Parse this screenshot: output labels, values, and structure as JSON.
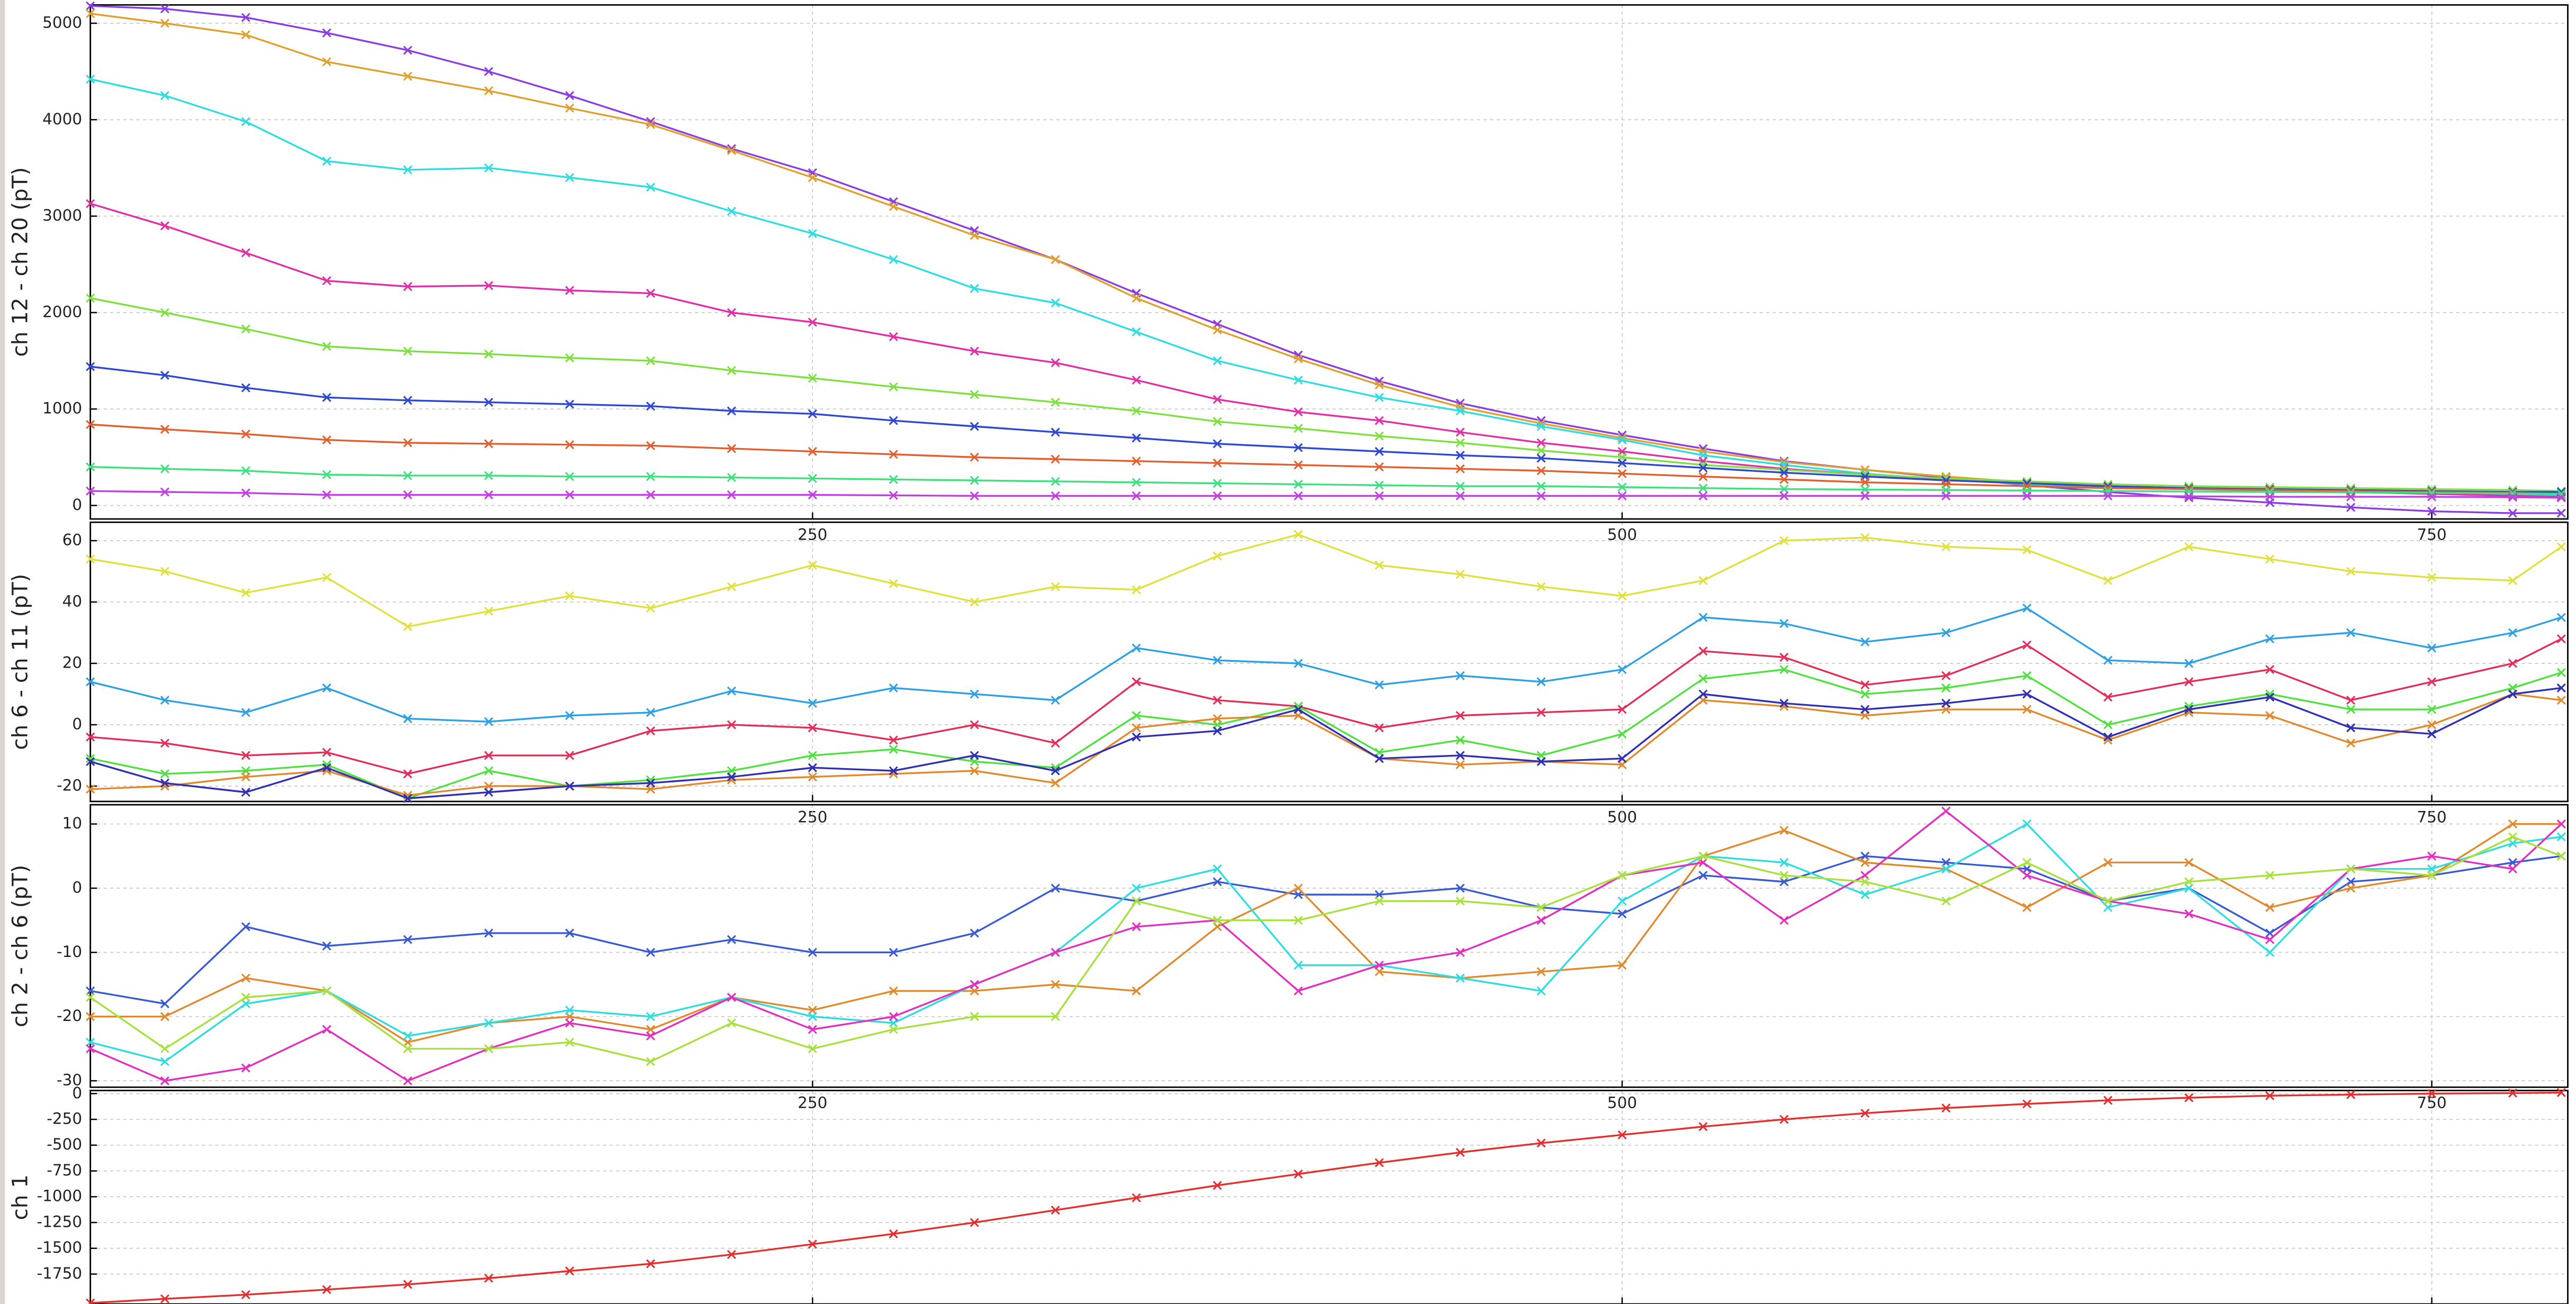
{
  "chart_data": [
    {
      "type": "line",
      "y_label": "ch 12 - ch 20 (pT)",
      "x": [
        27,
        50,
        75,
        100,
        125,
        150,
        175,
        200,
        225,
        250,
        275,
        300,
        325,
        350,
        375,
        400,
        425,
        450,
        475,
        500,
        525,
        550,
        575,
        600,
        625,
        650,
        675,
        700,
        725,
        750,
        775,
        790
      ],
      "xlim": [
        27,
        792
      ],
      "xticks": [
        250,
        500,
        750
      ],
      "ylim": [
        -140,
        5190
      ],
      "yticks": [
        0,
        1000,
        2000,
        3000,
        4000,
        5000
      ],
      "grid": true,
      "series": [
        {
          "color": "#8a3ee0",
          "values": [
            5180,
            5150,
            5060,
            4900,
            4720,
            4500,
            4250,
            3980,
            3700,
            3450,
            3150,
            2850,
            2550,
            2200,
            1880,
            1560,
            1290,
            1060,
            880,
            730,
            590,
            460,
            370,
            290,
            210,
            140,
            80,
            30,
            -20,
            -60,
            -80,
            -80
          ]
        },
        {
          "color": "#e0a030",
          "values": [
            5100,
            5000,
            4880,
            4600,
            4450,
            4300,
            4120,
            3950,
            3680,
            3400,
            3100,
            2800,
            2550,
            2150,
            1820,
            1520,
            1250,
            1020,
            850,
            700,
            560,
            450,
            370,
            300,
            240,
            200,
            170,
            160,
            150,
            140,
            130,
            120
          ]
        },
        {
          "color": "#30dce0",
          "values": [
            4420,
            4250,
            3980,
            3570,
            3480,
            3500,
            3400,
            3300,
            3050,
            2820,
            2550,
            2250,
            2100,
            1800,
            1500,
            1300,
            1120,
            980,
            820,
            680,
            520,
            420,
            330,
            270,
            220,
            190,
            170,
            150,
            140,
            120,
            110,
            100
          ]
        },
        {
          "color": "#e030a8",
          "values": [
            3130,
            2900,
            2620,
            2330,
            2270,
            2280,
            2230,
            2200,
            2000,
            1900,
            1750,
            1600,
            1480,
            1300,
            1100,
            970,
            880,
            760,
            650,
            560,
            460,
            380,
            320,
            270,
            230,
            200,
            180,
            160,
            140,
            120,
            100,
            90
          ]
        },
        {
          "color": "#7ee040",
          "values": [
            2150,
            2000,
            1830,
            1650,
            1600,
            1570,
            1530,
            1500,
            1400,
            1320,
            1230,
            1150,
            1070,
            980,
            870,
            800,
            720,
            650,
            570,
            500,
            420,
            370,
            320,
            280,
            250,
            220,
            200,
            190,
            180,
            170,
            160,
            150
          ]
        },
        {
          "color": "#3048d0",
          "values": [
            1440,
            1350,
            1220,
            1120,
            1090,
            1070,
            1050,
            1030,
            980,
            950,
            880,
            820,
            760,
            700,
            640,
            600,
            560,
            520,
            490,
            440,
            390,
            340,
            300,
            260,
            230,
            200,
            180,
            170,
            160,
            150,
            140,
            140
          ]
        },
        {
          "color": "#e06030",
          "values": [
            840,
            790,
            740,
            680,
            650,
            640,
            630,
            620,
            590,
            560,
            530,
            500,
            480,
            460,
            440,
            420,
            400,
            380,
            360,
            330,
            300,
            270,
            240,
            220,
            200,
            180,
            170,
            160,
            150,
            140,
            130,
            120
          ]
        },
        {
          "color": "#40e080",
          "values": [
            400,
            380,
            360,
            320,
            310,
            310,
            300,
            300,
            290,
            280,
            270,
            260,
            250,
            240,
            230,
            220,
            210,
            200,
            200,
            190,
            180,
            170,
            165,
            160,
            155,
            150,
            145,
            140,
            135,
            130,
            125,
            120
          ]
        },
        {
          "color": "#c040e0",
          "values": [
            150,
            140,
            130,
            110,
            110,
            110,
            110,
            110,
            110,
            110,
            105,
            100,
            100,
            100,
            100,
            100,
            100,
            100,
            100,
            100,
            100,
            100,
            100,
            100,
            100,
            100,
            95,
            90,
            90,
            90,
            85,
            80
          ]
        }
      ]
    },
    {
      "type": "line",
      "y_label": "ch 6 - ch 11 (pT)",
      "x": [
        27,
        50,
        75,
        100,
        125,
        150,
        175,
        200,
        225,
        250,
        275,
        300,
        325,
        350,
        375,
        400,
        425,
        450,
        475,
        500,
        525,
        550,
        575,
        600,
        625,
        650,
        675,
        700,
        725,
        750,
        775,
        790
      ],
      "xlim": [
        27,
        792
      ],
      "xticks": [
        250,
        500,
        750
      ],
      "ylim": [
        -25,
        66
      ],
      "yticks": [
        -20,
        0,
        20,
        40,
        60
      ],
      "grid": true,
      "series": [
        {
          "color": "#e0e040",
          "values": [
            54,
            50,
            43,
            48,
            32,
            37,
            42,
            38,
            45,
            52,
            46,
            40,
            45,
            44,
            55,
            62,
            52,
            49,
            45,
            42,
            47,
            60,
            61,
            58,
            57,
            47,
            58,
            54,
            50,
            48,
            47,
            58
          ]
        },
        {
          "color": "#30a0e0",
          "values": [
            14,
            8,
            4,
            12,
            2,
            1,
            3,
            4,
            11,
            7,
            12,
            10,
            8,
            25,
            21,
            20,
            13,
            16,
            14,
            18,
            35,
            33,
            27,
            30,
            38,
            21,
            20,
            28,
            30,
            25,
            30,
            35
          ]
        },
        {
          "color": "#e0305a",
          "values": [
            -4,
            -6,
            -10,
            -9,
            -16,
            -10,
            -10,
            -2,
            0,
            -1,
            -5,
            0,
            -6,
            14,
            8,
            6,
            -1,
            3,
            4,
            5,
            24,
            22,
            13,
            16,
            26,
            9,
            14,
            18,
            8,
            14,
            20,
            28
          ]
        },
        {
          "color": "#50e040",
          "values": [
            -11,
            -16,
            -15,
            -13,
            -24,
            -15,
            -20,
            -18,
            -15,
            -10,
            -8,
            -12,
            -14,
            3,
            0,
            6,
            -9,
            -5,
            -10,
            -3,
            15,
            18,
            10,
            12,
            16,
            0,
            6,
            10,
            5,
            5,
            12,
            17
          ]
        },
        {
          "color": "#e08a30",
          "values": [
            -21,
            -20,
            -17,
            -15,
            -23,
            -20,
            -20,
            -21,
            -18,
            -17,
            -16,
            -15,
            -19,
            -1,
            2,
            3,
            -11,
            -13,
            -12,
            -13,
            8,
            6,
            3,
            5,
            5,
            -5,
            4,
            3,
            -6,
            0,
            10,
            8
          ]
        },
        {
          "color": "#3030b0",
          "values": [
            -12,
            -19,
            -22,
            -14,
            -24,
            -22,
            -20,
            -19,
            -17,
            -14,
            -15,
            -10,
            -15,
            -4,
            -2,
            5,
            -11,
            -10,
            -12,
            -11,
            10,
            7,
            5,
            7,
            10,
            -4,
            5,
            9,
            -1,
            -3,
            10,
            12
          ]
        }
      ]
    },
    {
      "type": "line",
      "y_label": "ch 2 - ch 6 (pT)",
      "x": [
        27,
        50,
        75,
        100,
        125,
        150,
        175,
        200,
        225,
        250,
        275,
        300,
        325,
        350,
        375,
        400,
        425,
        450,
        475,
        500,
        525,
        550,
        575,
        600,
        625,
        650,
        675,
        700,
        725,
        750,
        775,
        790
      ],
      "xlim": [
        27,
        792
      ],
      "xticks": [
        250,
        500,
        750
      ],
      "ylim": [
        -31,
        13
      ],
      "yticks": [
        -30,
        -20,
        -10,
        0,
        10
      ],
      "grid": true,
      "series": [
        {
          "color": "#3a5ad0",
          "values": [
            -16,
            -18,
            -6,
            -9,
            -8,
            -7,
            -7,
            -10,
            -8,
            -10,
            -10,
            -7,
            0,
            -2,
            1,
            -1,
            -1,
            0,
            -3,
            -4,
            2,
            1,
            5,
            4,
            3,
            -2,
            0,
            -7,
            1,
            2,
            4,
            5
          ]
        },
        {
          "color": "#e08a30",
          "values": [
            -20,
            -20,
            -14,
            -16,
            -24,
            -21,
            -20,
            -22,
            -17,
            -19,
            -16,
            -16,
            -15,
            -16,
            -6,
            0,
            -13,
            -14,
            -13,
            -12,
            5,
            9,
            4,
            3,
            -3,
            4,
            4,
            -3,
            0,
            2,
            10,
            10
          ]
        },
        {
          "color": "#30dce0",
          "values": [
            -24,
            -27,
            -18,
            -16,
            -23,
            -21,
            -19,
            -20,
            -17,
            -20,
            -21,
            -15,
            -10,
            0,
            3,
            -12,
            -12,
            -14,
            -16,
            -2,
            5,
            4,
            -1,
            3,
            10,
            -3,
            0,
            -10,
            3,
            3,
            7,
            8
          ]
        },
        {
          "color": "#e030c0",
          "values": [
            -25,
            -30,
            -28,
            -22,
            -30,
            -25,
            -21,
            -23,
            -17,
            -22,
            -20,
            -15,
            -10,
            -6,
            -5,
            -16,
            -12,
            -10,
            -5,
            2,
            4,
            -5,
            2,
            12,
            2,
            -2,
            -4,
            -8,
            3,
            5,
            3,
            10
          ]
        },
        {
          "color": "#a8e040",
          "values": [
            -17,
            -25,
            -17,
            -16,
            -25,
            -25,
            -24,
            -27,
            -21,
            -25,
            -22,
            -20,
            -20,
            -2,
            -5,
            -5,
            -2,
            -2,
            -3,
            2,
            5,
            2,
            1,
            -2,
            4,
            -2,
            1,
            2,
            3,
            2,
            8,
            5
          ]
        }
      ]
    },
    {
      "type": "line",
      "y_label": "ch 1",
      "x": [
        27,
        50,
        75,
        100,
        125,
        150,
        175,
        200,
        225,
        250,
        275,
        300,
        325,
        350,
        375,
        400,
        425,
        450,
        475,
        500,
        525,
        550,
        575,
        600,
        625,
        650,
        675,
        700,
        725,
        750,
        775,
        790
      ],
      "xlim": [
        27,
        792
      ],
      "xticks": [
        250,
        500,
        750
      ],
      "ylim": [
        -2040,
        30
      ],
      "yticks": [
        0,
        -250,
        -500,
        -750,
        -1000,
        -1250,
        -1500,
        -1750
      ],
      "grid": true,
      "series": [
        {
          "color": "#e03030",
          "values": [
            -2030,
            -1990,
            -1950,
            -1900,
            -1850,
            -1790,
            -1720,
            -1650,
            -1560,
            -1460,
            -1360,
            -1250,
            -1130,
            -1010,
            -890,
            -780,
            -670,
            -570,
            -480,
            -400,
            -320,
            -250,
            -190,
            -140,
            -100,
            -65,
            -40,
            -20,
            -10,
            0,
            5,
            10
          ]
        }
      ]
    }
  ]
}
